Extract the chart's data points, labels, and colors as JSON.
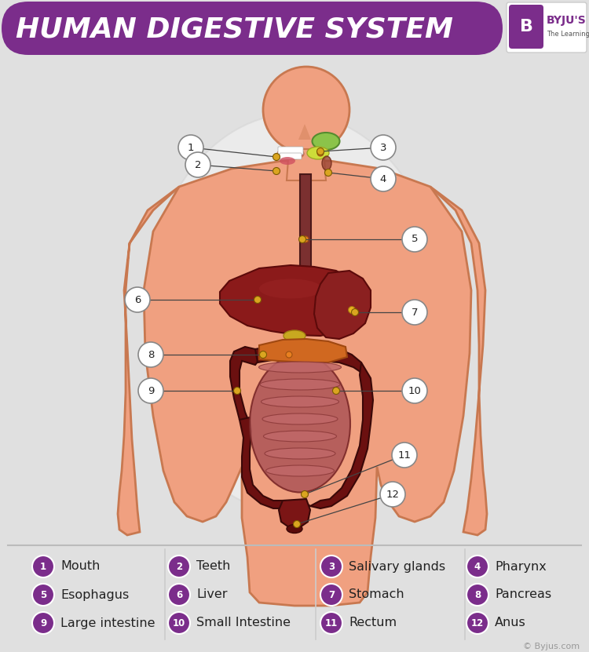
{
  "title": "HUMAN DIGESTIVE SYSTEM",
  "title_bg_color": "#7B2D8B",
  "title_text_color": "#FFFFFF",
  "bg_color": "#E0E0E0",
  "body_color": "#F0A080",
  "body_outline_color": "#C87850",
  "purple_color": "#7B2D8B",
  "liver_color": "#8B1A1A",
  "stomach_color": "#8B2020",
  "large_int_color": "#6B1010",
  "small_int_color": "#C06868",
  "esoph_color": "#7B3030",
  "pancreas_color": "#D06820",
  "gallbladder_color": "#C8A020",
  "rectum_color": "#7B1515",
  "salivary_color1": "#8BC34A",
  "salivary_color2": "#CDDC39",
  "legend_items": [
    [
      1,
      "Mouth",
      0,
      0
    ],
    [
      2,
      "Teeth",
      1,
      0
    ],
    [
      3,
      "Salivary glands",
      2,
      0
    ],
    [
      4,
      "Pharynx",
      3,
      0
    ],
    [
      5,
      "Esophagus",
      0,
      1
    ],
    [
      6,
      "Liver",
      1,
      1
    ],
    [
      7,
      "Stomach",
      2,
      1
    ],
    [
      8,
      "Pancreas",
      3,
      1
    ],
    [
      9,
      "Large intestine",
      0,
      2
    ],
    [
      10,
      "Small Intestine",
      1,
      2
    ],
    [
      11,
      "Rectum",
      2,
      2
    ],
    [
      12,
      "Anus",
      3,
      2
    ]
  ],
  "callouts": [
    [
      1,
      243,
      188,
      352,
      200
    ],
    [
      2,
      252,
      210,
      352,
      218
    ],
    [
      3,
      488,
      188,
      408,
      193
    ],
    [
      4,
      488,
      228,
      418,
      220
    ],
    [
      5,
      528,
      305,
      385,
      305
    ],
    [
      6,
      175,
      382,
      328,
      382
    ],
    [
      7,
      528,
      398,
      452,
      398
    ],
    [
      8,
      192,
      452,
      335,
      452
    ],
    [
      9,
      192,
      498,
      302,
      498
    ],
    [
      10,
      528,
      498,
      428,
      498
    ],
    [
      11,
      515,
      580,
      388,
      630
    ],
    [
      12,
      500,
      630,
      378,
      668
    ]
  ],
  "copyright": "© Byjus.com"
}
